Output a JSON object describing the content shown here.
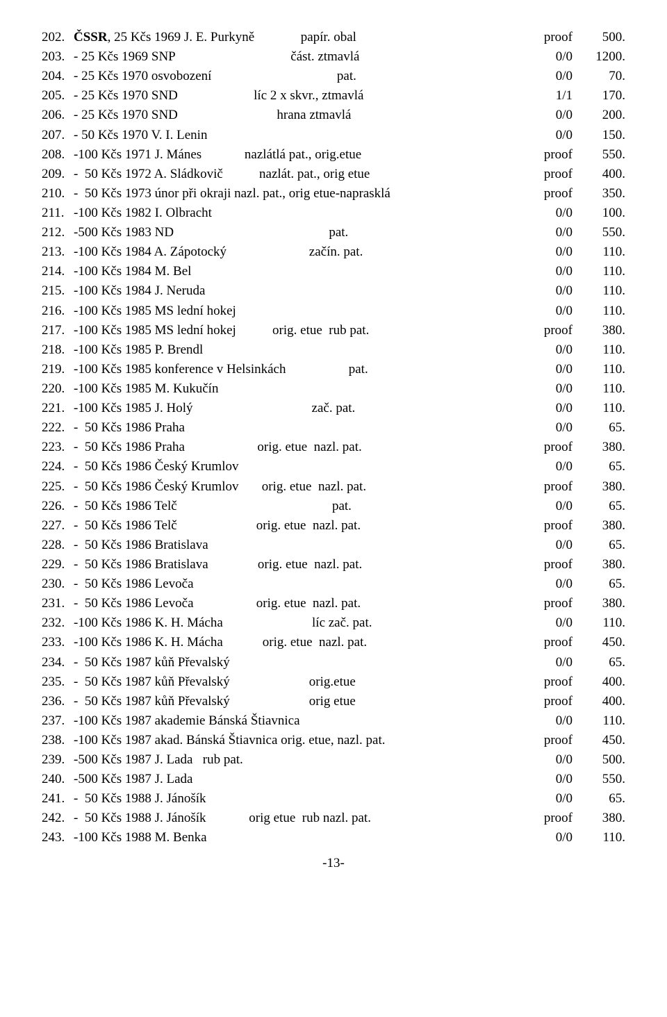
{
  "page_number": "-13-",
  "rows": [
    {
      "num": "202.",
      "desc_html": "<span class=\"bold\">ČSSR</span>, 25 Kčs 1969 J. E. Purkyně              papír. obal",
      "cond": "proof",
      "price": "500."
    },
    {
      "num": "203.",
      "desc": "- 25 Kčs 1969 SNP                                   část. ztmavlá",
      "cond": "0/0",
      "price": "1200."
    },
    {
      "num": "204.",
      "desc": "- 25 Kčs 1970 osvobození                                      pat.",
      "cond": "0/0",
      "price": "70."
    },
    {
      "num": "205.",
      "desc": "- 25 Kčs 1970 SND                       líc 2 x skvr., ztmavlá",
      "cond": "1/1",
      "price": "170."
    },
    {
      "num": "206.",
      "desc": "- 25 Kčs 1970 SND                              hrana ztmavlá",
      "cond": "0/0",
      "price": "200."
    },
    {
      "num": "207.",
      "desc": "- 50 Kčs 1970 V. I. Lenin",
      "cond": "0/0",
      "price": "150."
    },
    {
      "num": "208.",
      "desc": "-100 Kčs 1971 J. Mánes             nazlátlá pat., orig.etue",
      "cond": "proof",
      "price": "550."
    },
    {
      "num": "209.",
      "desc": "-  50 Kčs 1972 A. Sládkovič           nazlát. pat., orig etue",
      "cond": "proof",
      "price": "400."
    },
    {
      "num": "210.",
      "desc": "-  50 Kčs 1973 únor při okraji nazl. pat., orig etue-naprasklá",
      "cond": "proof",
      "price": "350."
    },
    {
      "num": "211.",
      "desc": "-100 Kčs 1982 I. Olbracht",
      "cond": "0/0",
      "price": "100."
    },
    {
      "num": "212.",
      "desc": "-500 Kčs 1983 ND                                               pat.",
      "cond": "0/0",
      "price": "550."
    },
    {
      "num": "213.",
      "desc": "-100 Kčs 1984 A. Zápotocký                         začín. pat.",
      "cond": "0/0",
      "price": "110."
    },
    {
      "num": "214.",
      "desc": "-100 Kčs 1984 M. Bel",
      "cond": "0/0",
      "price": "110."
    },
    {
      "num": "215.",
      "desc": "-100 Kčs 1984 J. Neruda",
      "cond": "0/0",
      "price": "110."
    },
    {
      "num": "216.",
      "desc": "-100 Kčs 1985 MS lední hokej",
      "cond": "0/0",
      "price": "110."
    },
    {
      "num": "217.",
      "desc": "-100 Kčs 1985 MS lední hokej           orig. etue  rub pat.",
      "cond": "proof",
      "price": "380."
    },
    {
      "num": "218.",
      "desc": "-100 Kčs 1985 P. Brendl",
      "cond": "0/0",
      "price": "110."
    },
    {
      "num": "219.",
      "desc": "-100 Kčs 1985 konference v Helsinkách                   pat.",
      "cond": "0/0",
      "price": "110."
    },
    {
      "num": "220.",
      "desc": "-100 Kčs 1985 M. Kukučín",
      "cond": "0/0",
      "price": "110."
    },
    {
      "num": "221.",
      "desc": "-100 Kčs 1985 J. Holý                                    zač. pat.",
      "cond": "0/0",
      "price": "110."
    },
    {
      "num": "222.",
      "desc": "-  50 Kčs 1986 Praha",
      "cond": "0/0",
      "price": "65."
    },
    {
      "num": "223.",
      "desc": "-  50 Kčs 1986 Praha                      orig. etue  nazl. pat.",
      "cond": "proof",
      "price": "380."
    },
    {
      "num": "224.",
      "desc": "-  50 Kčs 1986 Český Krumlov",
      "cond": "0/0",
      "price": "65."
    },
    {
      "num": "225.",
      "desc": "-  50 Kčs 1986 Český Krumlov       orig. etue  nazl. pat.",
      "cond": "proof",
      "price": "380."
    },
    {
      "num": "226.",
      "desc": "-  50 Kčs 1986 Telč                                               pat.",
      "cond": "0/0",
      "price": "65."
    },
    {
      "num": "227.",
      "desc": "-  50 Kčs 1986 Telč                        orig. etue  nazl. pat.",
      "cond": "proof",
      "price": "380."
    },
    {
      "num": "228.",
      "desc": "-  50 Kčs 1986 Bratislava",
      "cond": "0/0",
      "price": "65."
    },
    {
      "num": "229.",
      "desc": "-  50 Kčs 1986 Bratislava               orig. etue  nazl. pat.",
      "cond": "proof",
      "price": "380."
    },
    {
      "num": "230.",
      "desc": "-  50 Kčs 1986 Levoča",
      "cond": "0/0",
      "price": "65."
    },
    {
      "num": "231.",
      "desc": "-  50 Kčs 1986 Levoča                   orig. etue  nazl. pat.",
      "cond": "proof",
      "price": "380."
    },
    {
      "num": "232.",
      "desc": "-100 Kčs 1986 K. H. Mácha                           líc zač. pat.",
      "cond": "0/0",
      "price": "110."
    },
    {
      "num": "233.",
      "desc": "-100 Kčs 1986 K. H. Mácha            orig. etue  nazl. pat.",
      "cond": "proof",
      "price": "450."
    },
    {
      "num": "234.",
      "desc": "-  50 Kčs 1987 kůň Převalský",
      "cond": "0/0",
      "price": "65."
    },
    {
      "num": "235.",
      "desc": "-  50 Kčs 1987 kůň Převalský                        orig.etue",
      "cond": "proof",
      "price": "400."
    },
    {
      "num": "236.",
      "desc": "-  50 Kčs 1987 kůň Převalský                        orig etue",
      "cond": "proof",
      "price": "400."
    },
    {
      "num": "237.",
      "desc": "-100 Kčs 1987 akademie Bánská Štiavnica",
      "cond": "0/0",
      "price": "110."
    },
    {
      "num": "238.",
      "desc": "-100 Kčs 1987 akad. Bánská Štiavnica orig. etue, nazl. pat.",
      "cond": "proof",
      "price": "450."
    },
    {
      "num": "239.",
      "desc": "-500 Kčs 1987 J. Lada   rub pat.",
      "cond": "0/0",
      "price": "500."
    },
    {
      "num": "240.",
      "desc": "-500 Kčs 1987 J. Lada",
      "cond": "0/0",
      "price": "550."
    },
    {
      "num": "241.",
      "desc": "-  50 Kčs 1988 J. Jánošík",
      "cond": "0/0",
      "price": "65."
    },
    {
      "num": "242.",
      "desc": "-  50 Kčs 1988 J. Jánošík             orig etue  rub nazl. pat.",
      "cond": "proof",
      "price": "380."
    },
    {
      "num": "243.",
      "desc": "-100 Kčs 1988 M. Benka",
      "cond": "0/0",
      "price": "110."
    }
  ]
}
